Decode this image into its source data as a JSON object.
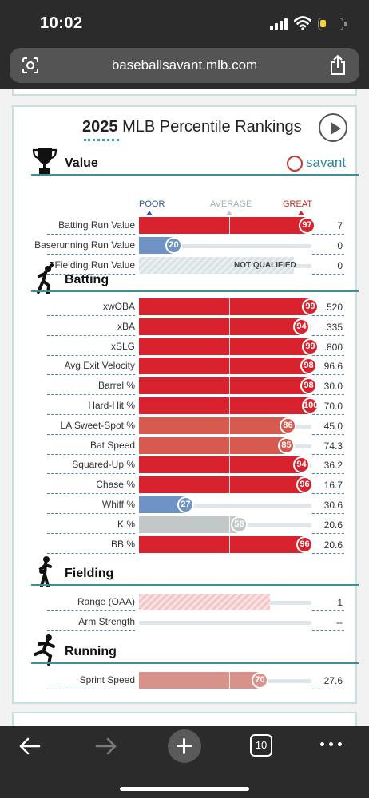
{
  "status": {
    "time": "10:02"
  },
  "browser": {
    "url": "baseballsavant.mlb.com",
    "tab_count": "10"
  },
  "card": {
    "year": "2025",
    "title_rest": "MLB Percentile Rankings",
    "logo_text": "savant",
    "scale": {
      "poor": "POOR",
      "average": "AVERAGE",
      "great": "GREAT"
    }
  },
  "colors": {
    "great": "#d8222e",
    "strong": "#d65a4e",
    "muted": "#d8928a",
    "average": "#c2c8c8",
    "poor": "#6e93c4"
  },
  "sections": {
    "value": {
      "title": "Value",
      "rows": [
        {
          "label": "Batting Run Value",
          "pct": 97,
          "value": "7",
          "tone": "great"
        },
        {
          "label": "Baserunning Run Value",
          "pct": 20,
          "value": "0",
          "tone": "poor"
        },
        {
          "label": "Fielding Run Value",
          "pct": null,
          "value": "0",
          "tone": "nq",
          "note": "NOT QUALIFIED"
        }
      ]
    },
    "batting": {
      "title": "Batting",
      "rows": [
        {
          "label": "xwOBA",
          "pct": 99,
          "value": ".520",
          "tone": "great"
        },
        {
          "label": "xBA",
          "pct": 94,
          "value": ".335",
          "tone": "great"
        },
        {
          "label": "xSLG",
          "pct": 99,
          "value": ".800",
          "tone": "great"
        },
        {
          "label": "Avg Exit Velocity",
          "pct": 98,
          "value": "96.6",
          "tone": "great"
        },
        {
          "label": "Barrel %",
          "pct": 98,
          "value": "30.0",
          "tone": "great"
        },
        {
          "label": "Hard-Hit %",
          "pct": 100,
          "value": "70.0",
          "tone": "great"
        },
        {
          "label": "LA Sweet-Spot %",
          "pct": 86,
          "value": "45.0",
          "tone": "strong"
        },
        {
          "label": "Bat Speed",
          "pct": 85,
          "value": "74.3",
          "tone": "strong"
        },
        {
          "label": "Squared-Up %",
          "pct": 94,
          "value": "36.2",
          "tone": "great"
        },
        {
          "label": "Chase %",
          "pct": 96,
          "value": "16.7",
          "tone": "great"
        },
        {
          "label": "Whiff %",
          "pct": 27,
          "value": "30.6",
          "tone": "poor"
        },
        {
          "label": "K %",
          "pct": 58,
          "value": "20.6",
          "tone": "average"
        },
        {
          "label": "BB %",
          "pct": 96,
          "value": "20.6",
          "tone": "great"
        }
      ]
    },
    "fielding": {
      "title": "Fielding",
      "rows": [
        {
          "label": "Range (OAA)",
          "pct": null,
          "fill": 76,
          "value": "1",
          "tone": "hatch"
        },
        {
          "label": "Arm Strength",
          "pct": null,
          "value": "--",
          "tone": "none"
        }
      ]
    },
    "running": {
      "title": "Running",
      "rows": [
        {
          "label": "Sprint Speed",
          "pct": 70,
          "value": "27.6",
          "tone": "muted"
        }
      ]
    }
  }
}
